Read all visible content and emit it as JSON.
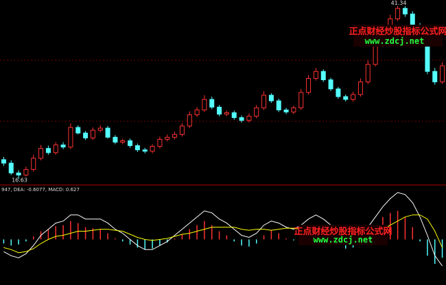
{
  "chart_data": [
    {
      "type": "candlestick",
      "open": [
        19.4,
        18.9,
        17.5,
        17.2,
        18.0,
        19.6,
        21.0,
        20.4,
        21.5,
        21.2,
        24.0,
        23.2,
        22.5,
        23.6,
        23.9,
        22.6,
        21.9,
        22.1,
        21.4,
        20.8,
        20.6,
        21.3,
        22.3,
        22.6,
        23.0,
        24.2,
        25.8,
        26.5,
        28.0,
        26.9,
        25.9,
        26.1,
        25.4,
        25.0,
        25.6,
        26.8,
        28.6,
        27.8,
        26.5,
        26.2,
        26.8,
        29.0,
        31.0,
        32.0,
        30.8,
        29.5,
        28.4,
        28.0,
        28.7,
        30.5,
        33.0,
        35.8,
        38.0,
        39.5,
        41.0,
        40.2,
        38.5,
        36.0,
        32.0,
        30.5
      ],
      "high": [
        19.8,
        19.3,
        17.9,
        18.4,
        20.1,
        21.5,
        21.4,
        21.9,
        21.9,
        24.6,
        24.3,
        23.5,
        24.0,
        24.3,
        24.2,
        22.9,
        22.4,
        22.4,
        21.7,
        21.1,
        21.6,
        22.7,
        23.0,
        23.4,
        24.6,
        26.3,
        26.9,
        28.6,
        28.4,
        27.2,
        26.4,
        26.4,
        25.7,
        26.0,
        27.2,
        29.2,
        28.9,
        28.1,
        26.8,
        27.1,
        29.5,
        31.5,
        32.5,
        32.3,
        31.1,
        29.8,
        28.7,
        29.1,
        31.0,
        33.6,
        36.4,
        38.6,
        40.1,
        41.34,
        41.3,
        40.6,
        38.9,
        36.4,
        32.5,
        33.3
      ],
      "low": [
        18.5,
        17.2,
        16.63,
        17.0,
        17.7,
        19.3,
        20.1,
        20.1,
        20.9,
        20.9,
        23.0,
        22.2,
        22.2,
        23.3,
        22.4,
        21.6,
        21.6,
        21.1,
        20.5,
        20.3,
        20.3,
        21.0,
        22.0,
        22.3,
        22.7,
        23.9,
        25.5,
        26.2,
        26.6,
        25.6,
        25.6,
        25.1,
        24.7,
        24.7,
        25.3,
        26.5,
        27.5,
        26.2,
        25.9,
        25.9,
        26.5,
        28.7,
        30.7,
        30.5,
        29.2,
        28.1,
        27.7,
        27.7,
        28.4,
        30.2,
        32.7,
        35.5,
        37.7,
        39.2,
        39.8,
        38.2,
        35.6,
        31.6,
        30.1,
        30.2
      ],
      "close": [
        18.9,
        17.5,
        17.2,
        18.0,
        19.6,
        21.0,
        20.4,
        21.5,
        21.2,
        24.0,
        23.2,
        22.5,
        23.6,
        23.9,
        22.6,
        21.9,
        22.1,
        21.4,
        20.8,
        20.6,
        21.3,
        22.3,
        22.6,
        23.0,
        24.2,
        25.8,
        26.5,
        28.0,
        26.9,
        25.9,
        26.1,
        25.4,
        25.0,
        25.6,
        26.8,
        28.6,
        27.8,
        26.5,
        26.2,
        26.8,
        29.0,
        31.0,
        32.0,
        30.8,
        29.5,
        28.4,
        28.0,
        28.7,
        30.5,
        33.0,
        35.8,
        38.0,
        39.5,
        41.0,
        40.2,
        38.5,
        36.0,
        32.0,
        30.5,
        32.8
      ],
      "up_color": "#ff3232",
      "down_color": "#54fcfc",
      "ylim": [
        15,
        42
      ],
      "low_label": 16.63,
      "high_label": 41.34
    },
    {
      "type": "macd",
      "title": "947, DEA: -0.6077, MACD: 0.627",
      "values": [
        -0.2,
        -0.3,
        -0.25,
        -0.1,
        0.15,
        0.4,
        0.5,
        0.65,
        0.7,
        0.9,
        0.8,
        0.6,
        0.55,
        0.5,
        0.3,
        0.05,
        -0.1,
        -0.25,
        -0.4,
        -0.5,
        -0.45,
        -0.3,
        -0.15,
        0.05,
        0.25,
        0.5,
        0.7,
        0.9,
        0.7,
        0.4,
        0.2,
        -0.1,
        -0.3,
        -0.35,
        -0.2,
        0.2,
        0.45,
        0.3,
        0.05,
        -0.05,
        0.2,
        0.5,
        0.65,
        0.4,
        0.1,
        -0.25,
        -0.45,
        -0.4,
        -0.1,
        0.3,
        0.7,
        1.1,
        1.3,
        1.4,
        1.1,
        0.6,
        -0.1,
        -0.8,
        -1.2,
        -0.9
      ],
      "up_color": "#ff3232",
      "down_color": "#54fcfc",
      "lines": [
        {
          "color": "#ffffff",
          "values": [
            -0.6,
            -0.8,
            -0.9,
            -0.7,
            -0.3,
            0.2,
            0.5,
            0.8,
            0.9,
            1.2,
            1.2,
            1.0,
            1.0,
            1.0,
            0.8,
            0.5,
            0.3,
            0.0,
            -0.3,
            -0.5,
            -0.5,
            -0.3,
            -0.1,
            0.2,
            0.5,
            0.8,
            1.1,
            1.4,
            1.3,
            1.0,
            0.8,
            0.5,
            0.2,
            0.1,
            0.3,
            0.7,
            0.9,
            0.8,
            0.6,
            0.5,
            0.7,
            1.0,
            1.2,
            1.0,
            0.7,
            0.3,
            0.0,
            -0.1,
            0.2,
            0.6,
            1.1,
            1.6,
            2.0,
            2.3,
            2.2,
            1.8,
            1.1,
            0.2,
            -0.8,
            -1.3
          ]
        },
        {
          "color": "#ffff00",
          "values": [
            -0.4,
            -0.5,
            -0.65,
            -0.6,
            -0.45,
            -0.2,
            0.0,
            0.15,
            0.2,
            0.3,
            0.4,
            0.4,
            0.45,
            0.5,
            0.5,
            0.45,
            0.4,
            0.25,
            0.1,
            0.0,
            -0.05,
            0.0,
            0.05,
            0.15,
            0.25,
            0.3,
            0.4,
            0.5,
            0.6,
            0.6,
            0.6,
            0.6,
            0.5,
            0.45,
            0.5,
            0.5,
            0.45,
            0.5,
            0.55,
            0.55,
            0.5,
            0.5,
            0.55,
            0.6,
            0.6,
            0.55,
            0.45,
            0.3,
            0.3,
            0.3,
            0.4,
            0.5,
            0.7,
            0.9,
            1.1,
            1.2,
            1.2,
            1.0,
            0.4,
            -0.4
          ]
        }
      ],
      "ylim": [
        -2.1,
        2.5
      ]
    }
  ],
  "watermarks": [
    {
      "title": "正点财经炒股指标公式网",
      "url": "www.zdcj.net"
    },
    {
      "title": "正点财经炒股指标公式网",
      "url": "www.zdcj.net"
    }
  ]
}
